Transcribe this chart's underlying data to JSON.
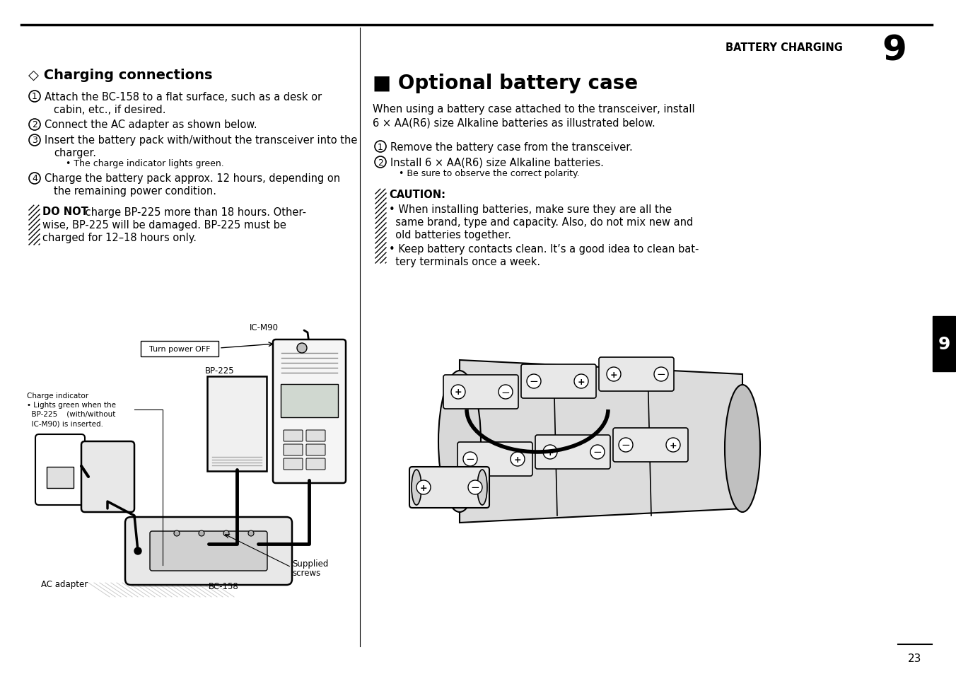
{
  "page_number": "23",
  "header_text": "BATTERY CHARGING",
  "header_number": "9",
  "bg_color": "#ffffff",
  "black": "#000000",
  "gray_light": "#e8e8e8",
  "gray_mid": "#c0c0c0",
  "gray_dark": "#888888",
  "left": {
    "title": "◇ Charging connections",
    "item1a": "Attach the BC-158 to a flat surface, such as a desk or",
    "item1b": "cabin, etc., if desired.",
    "item2": "Connect the AC adapter as shown below.",
    "item3a": "Insert the battery pack with/without the transceiver into the",
    "item3b": "charger.",
    "item3c": "• The charge indicator lights green.",
    "item4a": "Charge the battery pack approx. 12 hours, depending on",
    "item4b": "the remaining power condition.",
    "warn1a": "DO NOT",
    "warn1b": " charge BP-225 more than 18 hours. Other-",
    "warn2": "wise, BP-225 will be damaged. BP-225 must be",
    "warn3": "charged for 12–18 hours only.",
    "lbl_icm90": "IC-M90",
    "lbl_tpoff": "Turn power OFF",
    "lbl_bp225": "BP-225",
    "lbl_ci1": "Charge indicator",
    "lbl_ci2": "• Lights green when the",
    "lbl_ci3": "  BP-225    (with/without",
    "lbl_ci4": "  IC-M90) is inserted.",
    "lbl_ac": "AC adapter",
    "lbl_bc158": "BC-158",
    "lbl_screws1": "Supplied",
    "lbl_screws2": "screws"
  },
  "right": {
    "title": "■ Optional battery case",
    "intro1": "When using a battery case attached to the transceiver, install",
    "intro2": "6 × AA(R6) size Alkaline batteries as illustrated below.",
    "r1": "Remove the battery case from the transceiver.",
    "r2": "Install 6 × AA(R6) size Alkaline batteries.",
    "r3": "• Be sure to observe the correct polarity.",
    "caution_title": "CAUTION:",
    "c1a": "• When installing batteries, make sure they are all the",
    "c1b": "  same brand, type and capacity. Also, do not mix new and",
    "c1c": "  old batteries together.",
    "c2a": "• Keep battery contacts clean. It’s a good idea to clean bat-",
    "c2b": "  tery terminals once a week."
  }
}
